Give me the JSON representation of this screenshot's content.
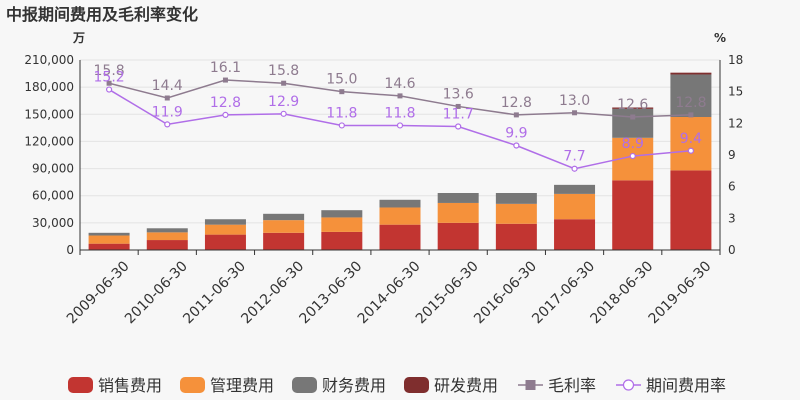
{
  "chart_data": {
    "type": "bar",
    "title": "中报期间费用及毛利率变化",
    "y_left_unit": "万",
    "y_right_unit": "%",
    "categories": [
      "2009-06-30",
      "2010-06-30",
      "2011-06-30",
      "2012-06-30",
      "2013-06-30",
      "2014-06-30",
      "2015-06-30",
      "2016-06-30",
      "2017-06-30",
      "2018-06-30",
      "2019-06-30"
    ],
    "y_left_ticks": [
      "0",
      "30,000",
      "60,000",
      "90,000",
      "120,000",
      "150,000",
      "180,000",
      "210,000"
    ],
    "y_right_ticks": [
      "0",
      "3",
      "6",
      "9",
      "12",
      "15",
      "18"
    ],
    "ylim_left": [
      0,
      210000
    ],
    "ylim_right": [
      0,
      18
    ],
    "bar_series": [
      {
        "name": "销售费用",
        "color": "#c23531",
        "values": [
          7000,
          11000,
          17000,
          19000,
          20000,
          28000,
          30000,
          29000,
          34000,
          77000,
          88000
        ]
      },
      {
        "name": "管理费用",
        "color": "#f5913b",
        "values": [
          9000,
          8500,
          11000,
          14000,
          16000,
          19000,
          22000,
          22000,
          28000,
          47000,
          59000
        ]
      },
      {
        "name": "财务费用",
        "color": "#777777",
        "values": [
          3000,
          4500,
          6000,
          7000,
          8000,
          8500,
          11000,
          12000,
          10000,
          32000,
          47000
        ]
      },
      {
        "name": "研发费用",
        "color": "#7f2e2e",
        "values": [
          0,
          0,
          0,
          0,
          0,
          0,
          0,
          0,
          0,
          1500,
          2000
        ]
      }
    ],
    "line_series": [
      {
        "name": "毛利率",
        "color": "#8e7b8f",
        "marker": "square",
        "values": [
          15.8,
          14.4,
          16.1,
          15.8,
          15.0,
          14.6,
          13.6,
          12.8,
          13.0,
          12.6,
          12.8
        ],
        "labels": [
          "15.8",
          "14.4",
          "16.1",
          "15.8",
          "15.0",
          "14.6",
          "13.6",
          "12.8",
          "13.0",
          "12.6",
          "12.8"
        ]
      },
      {
        "name": "期间费用率",
        "color": "#b06ee8",
        "marker": "circle",
        "values": [
          15.2,
          11.9,
          12.8,
          12.9,
          11.8,
          11.8,
          11.7,
          9.9,
          7.7,
          8.9,
          9.4
        ],
        "labels": [
          "15.2",
          "11.9",
          "12.8",
          "12.9",
          "11.8",
          "11.8",
          "11.7",
          "9.9",
          "7.7",
          "8.9",
          "9.4"
        ]
      }
    ],
    "grid": true,
    "legend_position": "bottom"
  }
}
